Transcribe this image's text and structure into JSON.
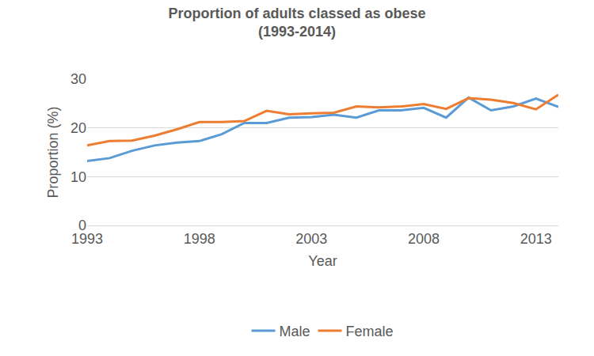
{
  "chart_data": {
    "type": "line",
    "title": "Proportion of adults classed as obese\n(1993-2014)",
    "x_label": "Year",
    "y_label": "Proportion (%)",
    "x": [
      1993,
      1994,
      1995,
      1996,
      1997,
      1998,
      1999,
      2000,
      2001,
      2002,
      2003,
      2004,
      2005,
      2006,
      2007,
      2008,
      2009,
      2010,
      2011,
      2012,
      2013,
      2014
    ],
    "series": [
      {
        "name": "Male",
        "color": "#5B9BD5",
        "values": [
          13.2,
          13.8,
          15.3,
          16.4,
          17.0,
          17.3,
          18.7,
          21.0,
          21.0,
          22.1,
          22.2,
          22.7,
          22.1,
          23.6,
          23.6,
          24.1,
          22.1,
          26.2,
          23.6,
          24.4,
          26.0,
          24.3
        ]
      },
      {
        "name": "Female",
        "color": "#ED7D31",
        "values": [
          16.4,
          17.3,
          17.4,
          18.4,
          19.7,
          21.2,
          21.2,
          21.4,
          23.5,
          22.8,
          23.0,
          23.1,
          24.4,
          24.2,
          24.4,
          24.9,
          23.9,
          26.1,
          25.8,
          25.1,
          23.8,
          26.8
        ]
      }
    ],
    "xlim": [
      1993,
      2014
    ],
    "xticks": [
      1993,
      1998,
      2003,
      2008,
      2013
    ],
    "ylim": [
      0,
      30
    ],
    "yticks": [
      0,
      10,
      20,
      30
    ],
    "grid": true,
    "legend": "bottom"
  }
}
